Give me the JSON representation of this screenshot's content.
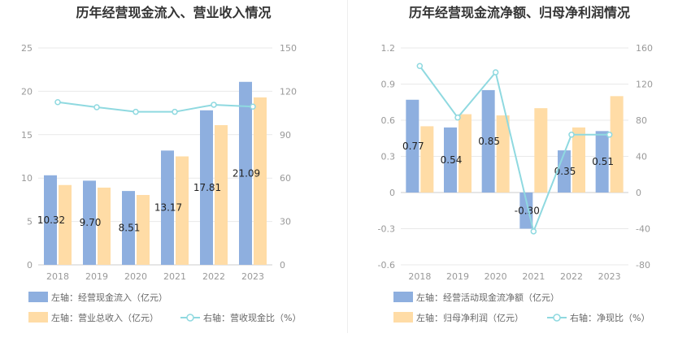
{
  "charts": [
    {
      "title": "历年经营现金流入、营业收入情况",
      "chart_data": {
        "type": "bar",
        "categories": [
          "2018",
          "2019",
          "2020",
          "2021",
          "2022",
          "2023"
        ],
        "series": [
          {
            "name": "左轴：经营现金流入（亿元）",
            "axis": "left",
            "kind": "bar",
            "color": "#8eafdf",
            "values": [
              10.32,
              9.7,
              8.51,
              13.17,
              17.81,
              21.09
            ],
            "labels": [
              "10.32",
              "9.70",
              "8.51",
              "13.17",
              "17.81",
              "21.09"
            ]
          },
          {
            "name": "左轴：营业总收入（亿元）",
            "axis": "left",
            "kind": "bar",
            "color": "#ffdca6",
            "values": [
              9.2,
              8.9,
              8.05,
              12.5,
              16.1,
              19.3
            ]
          },
          {
            "name": "右轴：营收现金比（%）",
            "axis": "right",
            "kind": "line",
            "color": "#8fd9e0",
            "values": [
              112.5,
              109.0,
              105.8,
              105.8,
              110.7,
              109.4
            ]
          }
        ],
        "left_axis": {
          "min": 0,
          "max": 25,
          "ticks": [
            "0",
            "5",
            "10",
            "15",
            "20",
            "25"
          ]
        },
        "right_axis": {
          "min": 0,
          "max": 150,
          "ticks": [
            "0",
            "30",
            "60",
            "90",
            "120",
            "150"
          ]
        }
      }
    },
    {
      "title": "历年经营现金流净额、归母净利润情况",
      "chart_data": {
        "type": "bar",
        "categories": [
          "2018",
          "2019",
          "2020",
          "2021",
          "2022",
          "2023"
        ],
        "series": [
          {
            "name": "左轴：经营活动现金流净额（亿元）",
            "axis": "left",
            "kind": "bar",
            "color": "#8eafdf",
            "values": [
              0.77,
              0.54,
              0.85,
              -0.3,
              0.35,
              0.51
            ],
            "labels": [
              "0.77",
              "0.54",
              "0.85",
              "-0.30",
              "0.35",
              "0.51"
            ]
          },
          {
            "name": "左轴：归母净利润（亿元）",
            "axis": "left",
            "kind": "bar",
            "color": "#ffdca6",
            "values": [
              0.55,
              0.65,
              0.64,
              0.7,
              0.54,
              0.8
            ]
          },
          {
            "name": "右轴：净现比（%）",
            "axis": "right",
            "kind": "line",
            "color": "#8fd9e0",
            "values": [
              140,
              83,
              133,
              -43,
              64,
              64
            ]
          }
        ],
        "left_axis": {
          "min": -0.6,
          "max": 1.2,
          "ticks": [
            "-0.6",
            "-0.3",
            "0",
            "0.3",
            "0.6",
            "0.9",
            "1.2"
          ]
        },
        "right_axis": {
          "min": -80,
          "max": 160,
          "ticks": [
            "-80",
            "-40",
            "0",
            "40",
            "80",
            "120",
            "160"
          ]
        }
      }
    }
  ]
}
